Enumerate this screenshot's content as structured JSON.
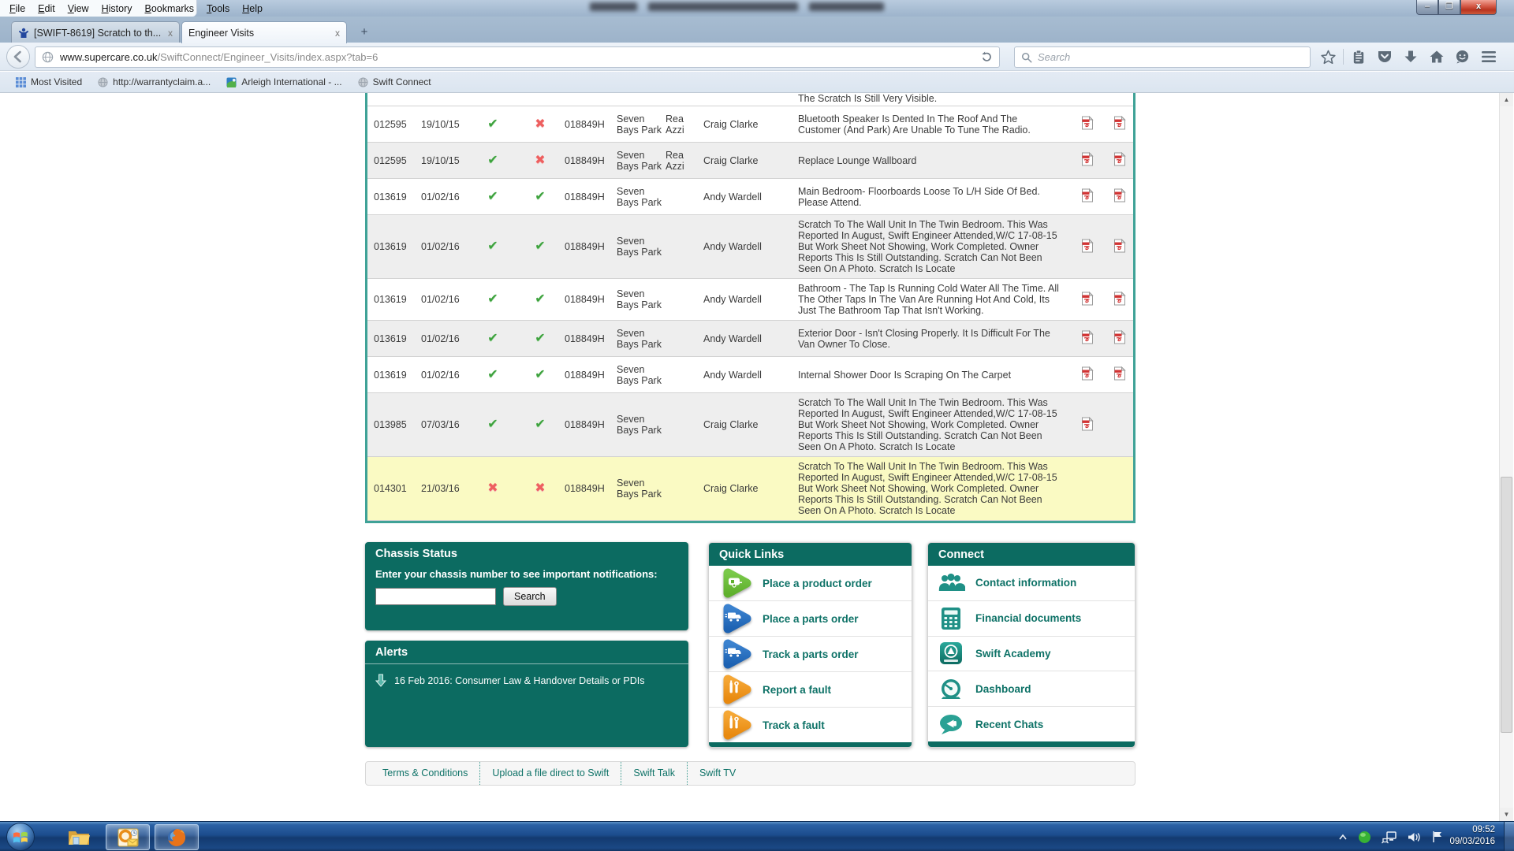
{
  "menu_bar": [
    "File",
    "Edit",
    "View",
    "History",
    "Bookmarks",
    "Tools",
    "Help"
  ],
  "tab_bar": {
    "tabs": [
      {
        "title": "[SWIFT-8619] Scratch to th...",
        "active": false,
        "favicon": "swift-person-icon",
        "close_glyph": "x"
      },
      {
        "title": "Engineer Visits",
        "active": true,
        "favicon": null,
        "close_glyph": "x"
      }
    ],
    "new_tab_label": "+"
  },
  "navigation": {
    "url_domain": "www.supercare.co.uk",
    "url_path": "/SwiftConnect/Engineer_Visits/index.aspx?tab=6",
    "search_placeholder": "Search",
    "toolbar_icons": [
      "star",
      "clipboard",
      "pocket",
      "download",
      "home",
      "chat",
      "menu"
    ]
  },
  "bookmarks_bar": [
    {
      "label": "Most Visited",
      "icon": "grid"
    },
    {
      "label": "http://warrantyclaim.a...",
      "icon": "globe"
    },
    {
      "label": "Arleigh International - ...",
      "icon": "site"
    },
    {
      "label": "Swift Connect",
      "icon": "globe"
    }
  ],
  "table": {
    "clipped_row_text": "The Scratch Is Still Very Visible.",
    "icons": {
      "check": "✔",
      "cross": "✖"
    },
    "rows": [
      {
        "visit_id": "012595",
        "date": "19/10/15",
        "attended": true,
        "completed": false,
        "chassis": "018849H",
        "park": "Seven Bays Park",
        "engineer": "Rea Azzi",
        "manager": "Craig Clarke",
        "description": "Bluetooth Speaker Is Dented In The Roof And The Customer (And Park) Are Unable To Tune The Radio.",
        "pdfs": 2,
        "bg": "white"
      },
      {
        "visit_id": "012595",
        "date": "19/10/15",
        "attended": true,
        "completed": false,
        "chassis": "018849H",
        "park": "Seven Bays Park",
        "engineer": "Rea Azzi",
        "manager": "Craig Clarke",
        "description": "Replace Lounge Wallboard",
        "pdfs": 2,
        "bg": "alt"
      },
      {
        "visit_id": "013619",
        "date": "01/02/16",
        "attended": true,
        "completed": true,
        "chassis": "018849H",
        "park": "Seven Bays Park",
        "engineer": "",
        "manager": "Andy Wardell",
        "description": "Main Bedroom- Floorboards Loose To L/H Side Of Bed. Please Attend.",
        "pdfs": 2,
        "bg": "white"
      },
      {
        "visit_id": "013619",
        "date": "01/02/16",
        "attended": true,
        "completed": true,
        "chassis": "018849H",
        "park": "Seven Bays Park",
        "engineer": "",
        "manager": "Andy Wardell",
        "description": "Scratch To The Wall Unit In The Twin Bedroom. This Was Reported In August, Swift Engineer Attended,W/C 17-08-15 But Work Sheet Not Showing, Work Completed. Owner Reports This Is Still Outstanding. Scratch Can Not Been Seen On A Photo. Scratch Is Locate",
        "pdfs": 2,
        "bg": "alt"
      },
      {
        "visit_id": "013619",
        "date": "01/02/16",
        "attended": true,
        "completed": true,
        "chassis": "018849H",
        "park": "Seven Bays Park",
        "engineer": "",
        "manager": "Andy Wardell",
        "description": "Bathroom - The Tap Is Running Cold Water All The Time. All The Other Taps In The Van Are Running Hot And Cold, Its Just The Bathroom Tap That Isn't Working.",
        "pdfs": 2,
        "bg": "white"
      },
      {
        "visit_id": "013619",
        "date": "01/02/16",
        "attended": true,
        "completed": true,
        "chassis": "018849H",
        "park": "Seven Bays Park",
        "engineer": "",
        "manager": "Andy Wardell",
        "description": "Exterior Door - Isn't Closing Properly. It Is Difficult For The Van Owner To Close.",
        "pdfs": 2,
        "bg": "alt"
      },
      {
        "visit_id": "013619",
        "date": "01/02/16",
        "attended": true,
        "completed": true,
        "chassis": "018849H",
        "park": "Seven Bays Park",
        "engineer": "",
        "manager": "Andy Wardell",
        "description": "Internal Shower Door Is Scraping On The Carpet",
        "pdfs": 2,
        "bg": "white"
      },
      {
        "visit_id": "013985",
        "date": "07/03/16",
        "attended": true,
        "completed": true,
        "chassis": "018849H",
        "park": "Seven Bays Park",
        "engineer": "",
        "manager": "Craig Clarke",
        "description": "Scratch To The Wall Unit In The Twin Bedroom. This Was Reported In August, Swift Engineer Attended,W/C 17-08-15 But Work Sheet Not Showing, Work Completed. Owner Reports This Is Still Outstanding. Scratch Can Not Been Seen On A Photo. Scratch Is Locate",
        "pdfs": 1,
        "bg": "alt"
      },
      {
        "visit_id": "014301",
        "date": "21/03/16",
        "attended": false,
        "completed": false,
        "chassis": "018849H",
        "park": "Seven Bays Park",
        "engineer": "",
        "manager": "Craig Clarke",
        "description": "Scratch To The Wall Unit In The Twin Bedroom. This Was Reported In August, Swift Engineer Attended,W/C 17-08-15 But Work Sheet Not Showing, Work Completed. Owner Reports This Is Still Outstanding. Scratch Can Not Been Seen On A Photo. Scratch Is Locate",
        "pdfs": 0,
        "bg": "highlight"
      }
    ]
  },
  "chassis_status": {
    "title": "Chassis Status",
    "instruction": "Enter your chassis number to see important notifications:",
    "input_value": "",
    "search_button": "Search"
  },
  "alerts": {
    "title": "Alerts",
    "items": [
      {
        "text": "16 Feb 2016: Consumer Law & Handover Details or PDIs"
      }
    ]
  },
  "quick_links": {
    "title": "Quick Links",
    "items": [
      {
        "label": "Place a product order",
        "icon": "caravan",
        "color": "#5fb02d",
        "color2": "#79c94a"
      },
      {
        "label": "Place a parts order",
        "icon": "truck",
        "color": "#1d62b2",
        "color2": "#3b82cf"
      },
      {
        "label": "Track a parts order",
        "icon": "truck",
        "color": "#1d62b2",
        "color2": "#3b82cf"
      },
      {
        "label": "Report a fault",
        "icon": "tools",
        "color": "#e8890f",
        "color2": "#f5a735"
      },
      {
        "label": "Track a fault",
        "icon": "tools",
        "color": "#e8890f",
        "color2": "#f5a735"
      }
    ]
  },
  "connect": {
    "title": "Connect",
    "items": [
      {
        "label": "Contact information",
        "icon": "people"
      },
      {
        "label": "Financial documents",
        "icon": "calculator"
      },
      {
        "label": "Swift Academy",
        "icon": "academy"
      },
      {
        "label": "Dashboard",
        "icon": "gauge"
      },
      {
        "label": "Recent Chats",
        "icon": "chat-bubble"
      }
    ]
  },
  "footer_links": [
    "Terms & Conditions",
    "Upload a file direct to Swift",
    "Swift Talk",
    "Swift TV"
  ],
  "taskbar": {
    "tray_time": "09:52",
    "tray_date": "09/03/2016"
  },
  "theme": {
    "teal": "#0c6b61",
    "link_teal": "#0e7267",
    "highlight_row": "#fafac3",
    "alt_row": "#eeeeee"
  }
}
